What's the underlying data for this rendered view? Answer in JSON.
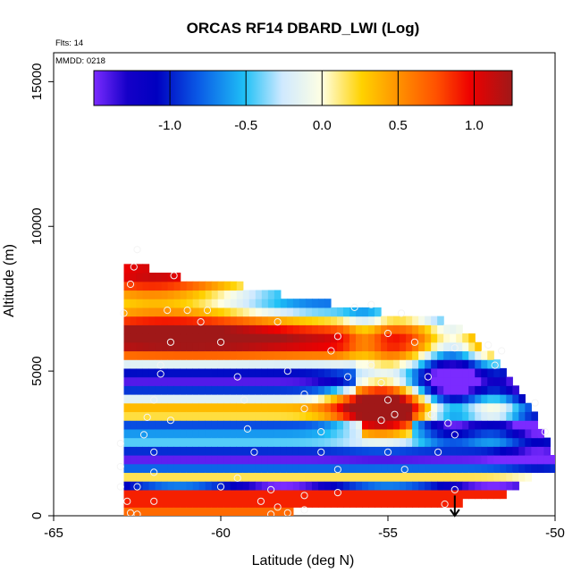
{
  "chart_data": {
    "type": "heatmap",
    "title": "ORCAS RF14 DBARD_LWI (Log)",
    "flights_label": "Flts: 14",
    "mmdd_label": "MMDD: 0218",
    "xlabel": "Latitude (deg N)",
    "ylabel": "Altitude (m)",
    "xlim": [
      -65,
      -50
    ],
    "ylim": [
      0,
      16000
    ],
    "x_ticks": [
      -65,
      -60,
      -55,
      -50
    ],
    "y_ticks": [
      0,
      5000,
      10000,
      15000
    ],
    "x_tick_labels": [
      "-65",
      "-60",
      "-55",
      "-50"
    ],
    "y_tick_labels": [
      "0",
      "5000",
      "10000",
      "15000"
    ],
    "colorbar": {
      "range": [
        -1.5,
        1.25
      ],
      "ticks": [
        -1.0,
        -0.5,
        0.0,
        0.5,
        1.0
      ],
      "tick_labels": [
        "-1.0",
        "-0.5",
        "0.0",
        "0.5",
        "1.0"
      ],
      "position": "top"
    },
    "grid": false,
    "extent": {
      "x_range": [
        -62.9,
        -50.0
      ],
      "y_range": [
        0,
        9300
      ],
      "top_edge": [
        [
          -62.9,
          8600
        ],
        [
          -62.2,
          8600
        ],
        [
          -61.5,
          8300
        ],
        [
          -59.5,
          8000
        ],
        [
          -58.0,
          7600
        ],
        [
          -56.5,
          7300
        ],
        [
          -55.0,
          7000
        ],
        [
          -53.5,
          6800
        ],
        [
          -52.8,
          6500
        ],
        [
          -51.8,
          5500
        ],
        [
          -51.0,
          4300
        ],
        [
          -50.4,
          3000
        ],
        [
          -50.0,
          2000
        ]
      ],
      "bottom_edge": [
        [
          -62.9,
          0
        ],
        [
          -57.8,
          0
        ],
        [
          -57.8,
          300
        ],
        [
          -52.8,
          300
        ],
        [
          -52.8,
          700
        ],
        [
          -51.5,
          700
        ],
        [
          -51.0,
          1200
        ],
        [
          -50.0,
          1600
        ]
      ]
    },
    "features": [
      {
        "description": "warm maximum",
        "x": -55.2,
        "y": 3900,
        "value": 1.2
      },
      {
        "description": "warm band",
        "y": 6500,
        "value": 0.8
      },
      {
        "description": "warm upper-left region",
        "x": -62.0,
        "y": 8200,
        "value": 1.0
      },
      {
        "description": "cold column",
        "x": -53.0,
        "y": 4500,
        "value": -1.0
      },
      {
        "description": "cold layer",
        "y": 3100,
        "value": -1.0
      },
      {
        "description": "cold layer",
        "y": 1900,
        "value": -1.0
      },
      {
        "description": "cold layer",
        "y": 4700,
        "value": -0.5
      },
      {
        "description": "cold upper-right",
        "x": -50.5,
        "y": 4000,
        "value": -1.4
      },
      {
        "description": "warm surface layer",
        "y": 600,
        "value": 0.9
      },
      {
        "description": "warm surface layer",
        "y": 150,
        "value": 0.65
      }
    ],
    "observation_points": [
      [
        -62.6,
        8600
      ],
      [
        -62.7,
        8000
      ],
      [
        -62.5,
        9200
      ],
      [
        -61.4,
        8300
      ],
      [
        -62.9,
        7000
      ],
      [
        -61.6,
        7100
      ],
      [
        -61.0,
        7100
      ],
      [
        -60.4,
        7100
      ],
      [
        -60.6,
        6700
      ],
      [
        -61.5,
        6000
      ],
      [
        -60.0,
        6000
      ],
      [
        -61.8,
        5200
      ],
      [
        -61.8,
        4900
      ],
      [
        -59.5,
        4800
      ],
      [
        -62.0,
        4000
      ],
      [
        -59.3,
        4000
      ],
      [
        -62.2,
        3400
      ],
      [
        -61.5,
        3300
      ],
      [
        -62.3,
        2800
      ],
      [
        -59.2,
        3000
      ],
      [
        -57.0,
        2900
      ],
      [
        -57.5,
        3700
      ],
      [
        -57.5,
        4200
      ],
      [
        -63.0,
        2500
      ],
      [
        -62.0,
        2200
      ],
      [
        -59.0,
        2200
      ],
      [
        -57.0,
        2200
      ],
      [
        -55.0,
        2200
      ],
      [
        -53.5,
        2200
      ],
      [
        -63.0,
        1700
      ],
      [
        -62.0,
        1500
      ],
      [
        -59.5,
        1300
      ],
      [
        -56.5,
        1600
      ],
      [
        -54.5,
        1600
      ],
      [
        -63.0,
        1000
      ],
      [
        -62.5,
        1000
      ],
      [
        -60.0,
        1000
      ],
      [
        -58.5,
        900
      ],
      [
        -57.5,
        700
      ],
      [
        -56.5,
        800
      ],
      [
        -53.0,
        900
      ],
      [
        -62.8,
        500
      ],
      [
        -62.0,
        500
      ],
      [
        -58.8,
        500
      ],
      [
        -58.3,
        300
      ],
      [
        -58.0,
        100
      ],
      [
        -57.5,
        200
      ],
      [
        -53.3,
        400
      ],
      [
        -62.7,
        100
      ],
      [
        -62.5,
        50
      ],
      [
        -58.5,
        50
      ],
      [
        -56.0,
        7200
      ],
      [
        -55.5,
        7300
      ],
      [
        -54.6,
        7000
      ],
      [
        -56.5,
        6200
      ],
      [
        -55.0,
        6300
      ],
      [
        -54.2,
        6000
      ],
      [
        -53.0,
        5800
      ],
      [
        -52.0,
        5900
      ],
      [
        -51.6,
        5700
      ],
      [
        -51.8,
        5200
      ],
      [
        -55.5,
        5200
      ],
      [
        -55.2,
        4600
      ],
      [
        -55.0,
        4000
      ],
      [
        -54.8,
        3500
      ],
      [
        -55.2,
        3300
      ],
      [
        -53.8,
        4800
      ],
      [
        -53.7,
        3500
      ],
      [
        -53.2,
        3200
      ],
      [
        -53.0,
        2800
      ],
      [
        -50.6,
        3900
      ],
      [
        -50.3,
        2900
      ],
      [
        -56.7,
        5700
      ],
      [
        -56.2,
        4800
      ],
      [
        -58.0,
        5000
      ],
      [
        -58.3,
        6700
      ]
    ],
    "annotation": {
      "type": "arrow-down",
      "x": -53.0,
      "y_from": 700,
      "y_to": 0
    }
  }
}
